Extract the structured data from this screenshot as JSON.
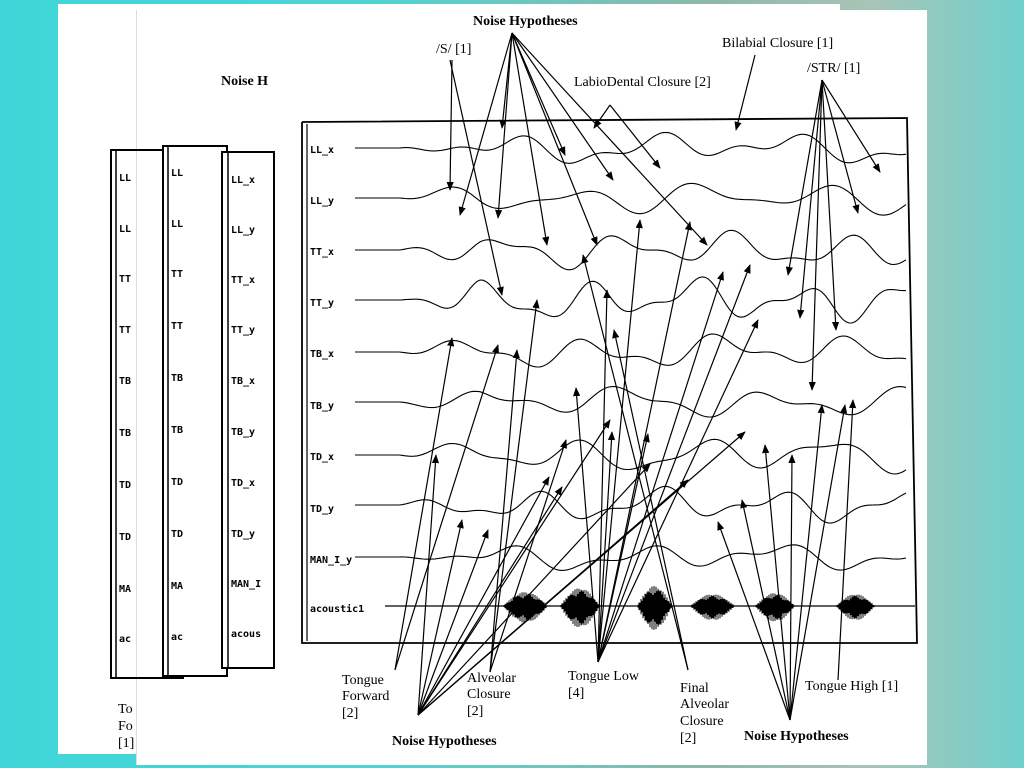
{
  "titles": {
    "noise_top": "Noise Hypotheses",
    "noise_bottom_left": "Noise Hypotheses",
    "noise_bottom_right": "Noise Hypotheses",
    "noise_back": "Noise H"
  },
  "top_labels": {
    "s": "/S/ [1]",
    "labiodental": "LabioDental Closure [2]",
    "bilabial": "Bilabial Closure [1]",
    "str": "/STR/ [1]"
  },
  "bottom_labels": {
    "tongue_forward": [
      "Tongue",
      "Forward",
      "[2]"
    ],
    "alveolar_closure": [
      "Alveolar",
      "Closure",
      "[2]"
    ],
    "tongue_low": [
      "Tongue Low",
      "[4]"
    ],
    "final_alveolar": [
      "Final",
      "Alveolar",
      "Closure",
      "[2]"
    ],
    "tongue_high": "Tongue High [1]"
  },
  "back_partial_labels": [
    "To",
    "Fo",
    "[1]"
  ],
  "channels": [
    "LL_x",
    "LL_y",
    "TT_x",
    "TT_y",
    "TB_x",
    "TB_y",
    "TD_x",
    "TD_y",
    "MAN_I_y",
    "acoustic1"
  ],
  "back_channels_a": [
    "LL",
    "LL",
    "TT",
    "TT",
    "TB",
    "TB",
    "TD",
    "TD",
    "MA",
    "ac"
  ],
  "back_channels_b": [
    "LL_x",
    "LL_y",
    "TT_x",
    "TT_y",
    "TB_x",
    "TB_y",
    "TD_x",
    "TD_y",
    "MAN_I",
    "acous"
  ]
}
